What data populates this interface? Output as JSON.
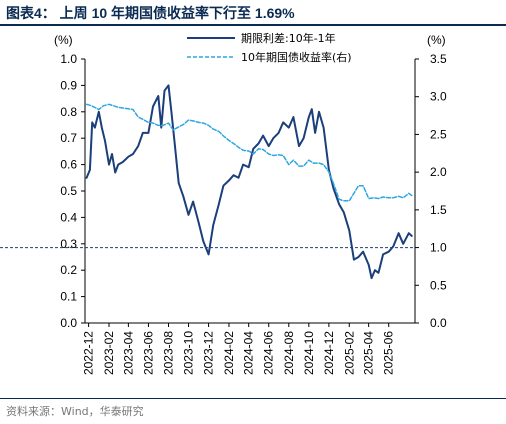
{
  "figure": {
    "title": "图表4：  上周 10 年期国债收益率下行至 1.69%",
    "source": "资料来源：Wind，华泰研究"
  },
  "chart_data": {
    "type": "line",
    "left_axis": {
      "unit_label": "(%)",
      "min": 0.0,
      "max": 1.0,
      "step": 0.1,
      "ticks": [
        "0.0",
        "0.1",
        "0.2",
        "0.3",
        "0.4",
        "0.5",
        "0.6",
        "0.7",
        "0.8",
        "0.9",
        "1.0"
      ]
    },
    "right_axis": {
      "unit_label": "(%)",
      "min": 0.0,
      "max": 3.5,
      "step": 0.5,
      "ticks": [
        "0.0",
        "0.5",
        "1.0",
        "1.5",
        "2.0",
        "2.5",
        "3.0",
        "3.5"
      ]
    },
    "x_axis": {
      "min": "2022-11-20",
      "max": "2025-08-20",
      "tick_dates": [
        "2022-12-01",
        "2023-02-01",
        "2023-04-01",
        "2023-06-01",
        "2023-08-01",
        "2023-10-01",
        "2023-12-01",
        "2024-02-01",
        "2024-04-01",
        "2024-06-01",
        "2024-08-01",
        "2024-10-01",
        "2024-12-01",
        "2025-02-01",
        "2025-04-01",
        "2025-06-01"
      ],
      "tick_labels": [
        "2022-12",
        "2023-02",
        "2023-04",
        "2023-06",
        "2023-08",
        "2023-10",
        "2023-12",
        "2024-02",
        "2024-04",
        "2024-06",
        "2024-08",
        "2024-10",
        "2024-12",
        "2025-02",
        "2025-04",
        "2025-06"
      ]
    },
    "reference_line": {
      "axis": "right",
      "value": 1.0,
      "style": "dashed",
      "color": "#1f3f73"
    },
    "legend": {
      "placement": "top-center"
    },
    "series": [
      {
        "name": "期限利差:10年-1年",
        "axis": "left",
        "color": "#1b3f7a",
        "style": "solid",
        "x": [
          "2022-11-25",
          "2022-12-05",
          "2022-12-12",
          "2022-12-20",
          "2023-01-01",
          "2023-01-10",
          "2023-01-20",
          "2023-02-01",
          "2023-02-10",
          "2023-02-20",
          "2023-03-01",
          "2023-03-15",
          "2023-04-01",
          "2023-04-15",
          "2023-05-01",
          "2023-05-15",
          "2023-06-01",
          "2023-06-15",
          "2023-07-01",
          "2023-07-10",
          "2023-07-20",
          "2023-08-01",
          "2023-08-10",
          "2023-08-20",
          "2023-09-01",
          "2023-09-15",
          "2023-10-01",
          "2023-10-15",
          "2023-11-01",
          "2023-11-15",
          "2023-12-01",
          "2023-12-15",
          "2024-01-01",
          "2024-01-15",
          "2024-02-01",
          "2024-02-15",
          "2024-03-01",
          "2024-03-15",
          "2024-04-01",
          "2024-04-15",
          "2024-05-01",
          "2024-05-15",
          "2024-06-01",
          "2024-06-15",
          "2024-07-01",
          "2024-07-15",
          "2024-08-01",
          "2024-08-15",
          "2024-09-01",
          "2024-09-15",
          "2024-10-01",
          "2024-10-10",
          "2024-10-20",
          "2024-11-01",
          "2024-11-15",
          "2024-12-01",
          "2024-12-15",
          "2025-01-01",
          "2025-01-15",
          "2025-02-01",
          "2025-02-15",
          "2025-03-01",
          "2025-03-15",
          "2025-04-01",
          "2025-04-10",
          "2025-04-20",
          "2025-05-01",
          "2025-05-15",
          "2025-06-01",
          "2025-06-15",
          "2025-07-01",
          "2025-07-15",
          "2025-08-01",
          "2025-08-10"
        ],
        "values": [
          0.55,
          0.58,
          0.76,
          0.74,
          0.8,
          0.74,
          0.69,
          0.6,
          0.64,
          0.57,
          0.6,
          0.61,
          0.63,
          0.64,
          0.67,
          0.72,
          0.72,
          0.82,
          0.86,
          0.74,
          0.88,
          0.9,
          0.8,
          0.68,
          0.53,
          0.48,
          0.41,
          0.46,
          0.38,
          0.31,
          0.26,
          0.37,
          0.45,
          0.52,
          0.54,
          0.56,
          0.55,
          0.6,
          0.59,
          0.66,
          0.68,
          0.71,
          0.67,
          0.7,
          0.72,
          0.76,
          0.74,
          0.78,
          0.67,
          0.7,
          0.78,
          0.81,
          0.72,
          0.8,
          0.74,
          0.58,
          0.51,
          0.45,
          0.42,
          0.35,
          0.24,
          0.25,
          0.27,
          0.22,
          0.17,
          0.2,
          0.19,
          0.26,
          0.27,
          0.29,
          0.34,
          0.3,
          0.34,
          0.33
        ]
      },
      {
        "name": "10年期国债收益率(右)",
        "axis": "right",
        "color": "#2ea6e0",
        "style": "dashed",
        "x": [
          "2022-11-25",
          "2022-12-10",
          "2023-01-01",
          "2023-01-15",
          "2023-02-01",
          "2023-02-15",
          "2023-03-01",
          "2023-03-15",
          "2023-04-01",
          "2023-04-15",
          "2023-05-01",
          "2023-05-15",
          "2023-06-01",
          "2023-06-15",
          "2023-07-01",
          "2023-07-15",
          "2023-08-01",
          "2023-08-15",
          "2023-09-01",
          "2023-09-15",
          "2023-10-01",
          "2023-10-15",
          "2023-11-01",
          "2023-11-15",
          "2023-12-01",
          "2023-12-15",
          "2024-01-01",
          "2024-01-15",
          "2024-02-01",
          "2024-02-15",
          "2024-03-01",
          "2024-03-15",
          "2024-04-01",
          "2024-04-15",
          "2024-05-01",
          "2024-05-15",
          "2024-06-01",
          "2024-06-15",
          "2024-07-01",
          "2024-07-15",
          "2024-08-01",
          "2024-08-15",
          "2024-09-01",
          "2024-09-15",
          "2024-10-01",
          "2024-10-15",
          "2024-11-01",
          "2024-11-15",
          "2024-12-01",
          "2024-12-15",
          "2025-01-01",
          "2025-01-15",
          "2025-02-01",
          "2025-02-15",
          "2025-03-01",
          "2025-03-15",
          "2025-04-01",
          "2025-04-15",
          "2025-05-01",
          "2025-05-15",
          "2025-06-01",
          "2025-06-15",
          "2025-07-01",
          "2025-07-15",
          "2025-08-01",
          "2025-08-10"
        ],
        "values": [
          2.9,
          2.88,
          2.83,
          2.88,
          2.9,
          2.88,
          2.86,
          2.85,
          2.84,
          2.83,
          2.73,
          2.7,
          2.66,
          2.65,
          2.62,
          2.62,
          2.65,
          2.56,
          2.6,
          2.63,
          2.69,
          2.68,
          2.66,
          2.65,
          2.62,
          2.57,
          2.54,
          2.48,
          2.42,
          2.38,
          2.33,
          2.29,
          2.28,
          2.24,
          2.31,
          2.3,
          2.24,
          2.22,
          2.23,
          2.22,
          2.1,
          2.16,
          2.08,
          2.08,
          2.16,
          2.12,
          2.12,
          2.1,
          2.0,
          1.85,
          1.64,
          1.62,
          1.62,
          1.72,
          1.82,
          1.82,
          1.65,
          1.66,
          1.65,
          1.67,
          1.66,
          1.66,
          1.68,
          1.66,
          1.72,
          1.69
        ]
      }
    ]
  }
}
